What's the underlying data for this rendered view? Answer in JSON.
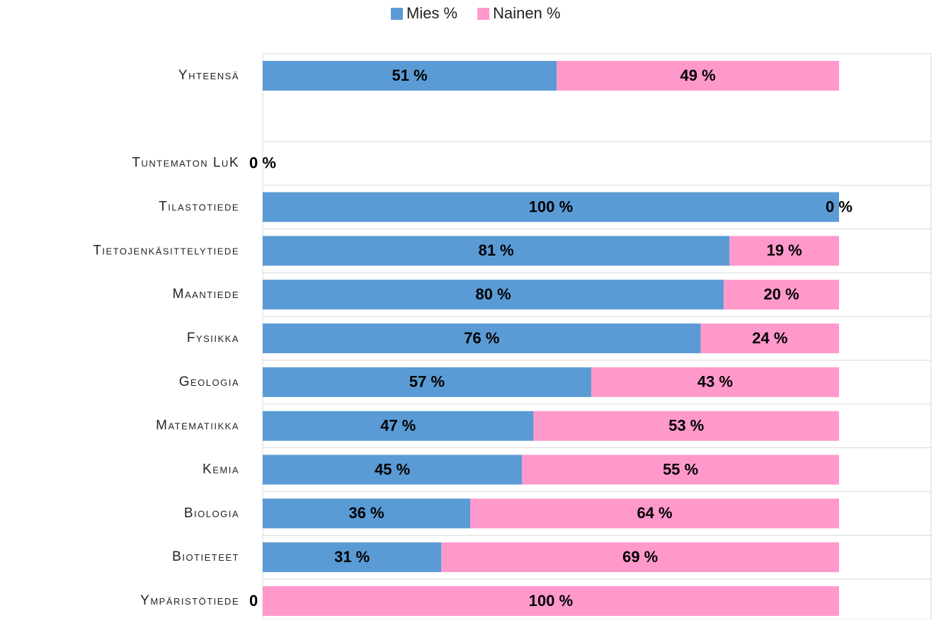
{
  "chart_data": {
    "type": "stacked_barh",
    "categories": [
      "Yhteensä",
      null,
      "Tuntematon LuK",
      "Tilastotiede",
      "Tietojenkäsittelytiede",
      "Maantiede",
      "Fysiikka",
      "Geologia",
      "Matematiikka",
      "Kemia",
      "Biologia",
      "Biotieteet",
      "Ympäristötiede"
    ],
    "series": [
      {
        "name": "Mies %",
        "color": "#5b9bd5",
        "values": [
          51,
          null,
          0,
          100,
          81,
          80,
          76,
          57,
          47,
          45,
          36,
          31,
          0
        ],
        "value_labels": [
          "51 %",
          null,
          "0 %",
          "100 %",
          "81 %",
          "80 %",
          "76 %",
          "57 %",
          "47 %",
          "45 %",
          "36 %",
          "31 %",
          "0 %"
        ]
      },
      {
        "name": "Nainen %",
        "color": "#ff99cc",
        "values": [
          49,
          null,
          null,
          0,
          19,
          20,
          24,
          43,
          53,
          55,
          64,
          69,
          100
        ],
        "value_labels": [
          "49 %",
          null,
          null,
          "0 %",
          "19 %",
          "20 %",
          "24 %",
          "43 %",
          "53 %",
          "55 %",
          "64 %",
          "69 %",
          "100 %"
        ]
      }
    ],
    "xlim": [
      0,
      100
    ],
    "legend": "top"
  }
}
